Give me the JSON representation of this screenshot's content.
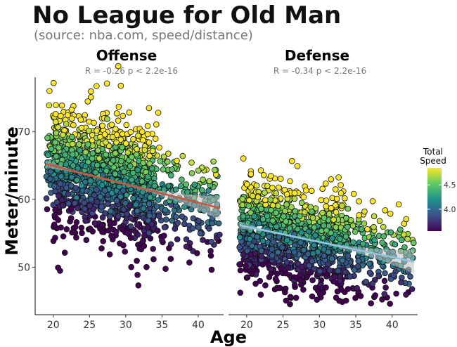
{
  "title": "No League for Old Man",
  "subtitle": "(source: nba.com, speed/distance)",
  "chart_data": {
    "type": "scatter",
    "xlabel": "Age",
    "ylabel": "Meter/minute",
    "xlim": [
      17.5,
      43.5
    ],
    "ylim": [
      43,
      78
    ],
    "x_ticks": [
      20,
      25,
      30,
      35,
      40
    ],
    "y_ticks": [
      50,
      60,
      70
    ],
    "legend": {
      "title_line1": "Total",
      "title_line2": "Speed",
      "ticks": [
        4.0,
        4.5
      ],
      "range": [
        3.55,
        4.85
      ],
      "placement": "right"
    },
    "panels": [
      {
        "name": "Offense",
        "stat": "R = -0.26   p < 2.2e-16",
        "fit": {
          "x_start": 19,
          "x_end": 43,
          "y_start": 65.2,
          "y_end": 58.7,
          "color": "#c9563f"
        },
        "point_count": 1500,
        "age_range": [
          19,
          43
        ],
        "center": 63.0,
        "spread": 4.3,
        "seed": 7
      },
      {
        "name": "Defense",
        "stat": "R = -0.34   p < 2.2e-16",
        "fit": {
          "x_start": 19,
          "x_end": 43,
          "y_start": 56.2,
          "y_end": 50.8,
          "color": "#8ec5e6"
        },
        "point_count": 1300,
        "age_range": [
          19,
          43
        ],
        "center": 54.5,
        "spread": 3.6,
        "seed": 13
      }
    ]
  }
}
